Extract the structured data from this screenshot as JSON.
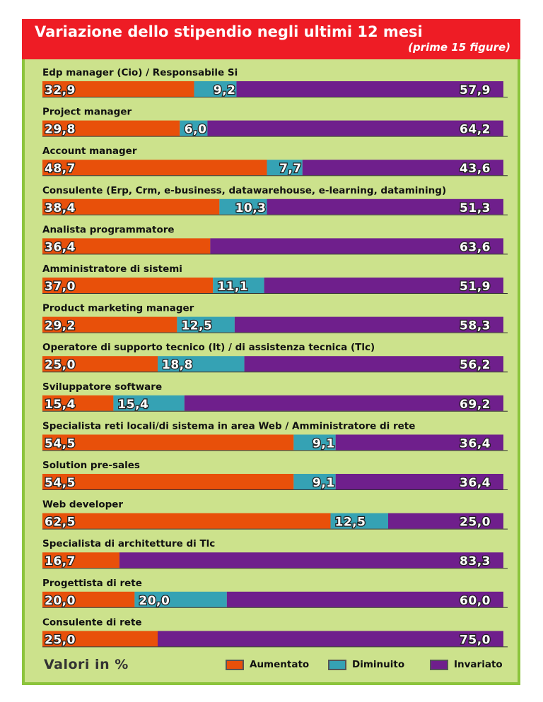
{
  "header": {
    "title": "Variazione dello stipendio negli ultimi 12 mesi",
    "subtitle": "(prime 15 figure)"
  },
  "footer_note": "Valori in %",
  "legend": [
    {
      "label": "Aumentato",
      "color": "#e8500a"
    },
    {
      "label": "Diminuito",
      "color": "#35a2b4"
    },
    {
      "label": "Invariato",
      "color": "#6f1f8c"
    }
  ],
  "chart_data": {
    "type": "bar",
    "orientation": "horizontal",
    "stacked": true,
    "xlim": [
      0,
      100
    ],
    "categories": [
      "Edp manager (Cio) / Responsabile Si",
      "Project manager",
      "Account manager",
      "Consulente (Erp, Crm, e-business, datawarehouse, e-learning, datamining)",
      "Analista programmatore",
      "Amministratore di sistemi",
      "Product marketing manager",
      "Operatore di supporto tecnico (It) / di assistenza tecnica (Tlc)",
      "Sviluppatore software",
      "Specialista reti locali/di sistema in area Web / Amministratore di rete",
      "Solution pre-sales",
      "Web developer",
      "Specialista di architetture di Tlc",
      "Progettista di rete",
      "Consulente di rete"
    ],
    "series": [
      {
        "name": "Aumentato",
        "color": "#e8500a",
        "values": [
          32.9,
          29.8,
          48.7,
          38.4,
          36.4,
          37.0,
          29.2,
          25.0,
          15.4,
          54.5,
          54.5,
          62.5,
          16.7,
          20.0,
          25.0
        ],
        "labels": [
          "32,9",
          "29,8",
          "48,7",
          "38,4",
          "36,4",
          "37,0",
          "29,2",
          "25,0",
          "15,4",
          "54,5",
          "54,5",
          "62,5",
          "16,7",
          "20,0",
          "25,0"
        ]
      },
      {
        "name": "Diminuito",
        "color": "#35a2b4",
        "values": [
          9.2,
          6.0,
          7.7,
          10.3,
          0,
          11.1,
          12.5,
          18.8,
          15.4,
          9.1,
          9.1,
          12.5,
          0,
          20.0,
          0
        ],
        "labels": [
          "9,2",
          "6,0",
          "7,7",
          "10,3",
          "",
          "11,1",
          "12,5",
          "18,8",
          "15,4",
          "9,1",
          "9,1",
          "12,5",
          "",
          "20,0",
          ""
        ]
      },
      {
        "name": "Invariato",
        "color": "#6f1f8c",
        "values": [
          57.9,
          64.2,
          43.6,
          51.3,
          63.6,
          51.9,
          58.3,
          56.2,
          69.2,
          36.4,
          36.4,
          25.0,
          83.3,
          60.0,
          75.0
        ],
        "labels": [
          "57,9",
          "64,2",
          "43,6",
          "51,3",
          "63,6",
          "51,9",
          "58,3",
          "56,2",
          "69,2",
          "36,4",
          "36,4",
          "25,0",
          "83,3",
          "60,0",
          "75,0"
        ]
      }
    ]
  }
}
